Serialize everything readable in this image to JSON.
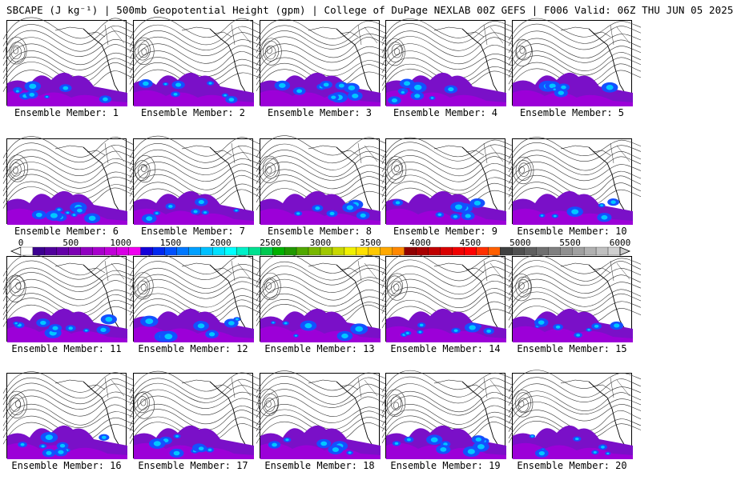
{
  "title": "SBCAPE (J kg⁻¹) | 500mb Geopotential Height (gpm) | College of DuPage NEXLAB 00Z GEFS | F006 Valid: 06Z THU JUN 05 2025",
  "members": [
    "Ensemble Member: 1",
    "Ensemble Member: 2",
    "Ensemble Member: 3",
    "Ensemble Member: 4",
    "Ensemble Member: 5",
    "Ensemble Member: 6",
    "Ensemble Member: 7",
    "Ensemble Member: 8",
    "Ensemble Member: 9",
    "Ensemble Member: 10",
    "Ensemble Member: 11",
    "Ensemble Member: 12",
    "Ensemble Member: 13",
    "Ensemble Member: 14",
    "Ensemble Member: 15",
    "Ensemble Member: 16",
    "Ensemble Member: 17",
    "Ensemble Member: 18",
    "Ensemble Member: 19",
    "Ensemble Member: 20"
  ],
  "colorbar": {
    "tick_labels": [
      "0",
      "500",
      "1000",
      "1500",
      "2000",
      "2500",
      "3000",
      "3500",
      "4000",
      "4500",
      "5000",
      "5500",
      "6000"
    ],
    "colors": [
      "#ffffff",
      "#3c0090",
      "#50009c",
      "#6400a8",
      "#7c00b4",
      "#9000c0",
      "#a800cc",
      "#c000d8",
      "#d800e4",
      "#f000f0",
      "#1400d8",
      "#0028f0",
      "#0050ff",
      "#0078ff",
      "#00a0ff",
      "#00c0ff",
      "#00e0ff",
      "#00ffff",
      "#00f0c8",
      "#00e090",
      "#00c850",
      "#00b000",
      "#209800",
      "#50a800",
      "#78b800",
      "#a0c800",
      "#c8d800",
      "#f0f000",
      "#ffe000",
      "#ffc800",
      "#ffa800",
      "#ff8800",
      "#900000",
      "#a80000",
      "#c00000",
      "#d80000",
      "#f00000",
      "#ff0000",
      "#ff3000",
      "#ff6000",
      "#404040",
      "#505050",
      "#606060",
      "#707070",
      "#808080",
      "#909090",
      "#a0a0a0",
      "#b0b0b0",
      "#c0c0c0",
      "#d0d0d0"
    ]
  }
}
